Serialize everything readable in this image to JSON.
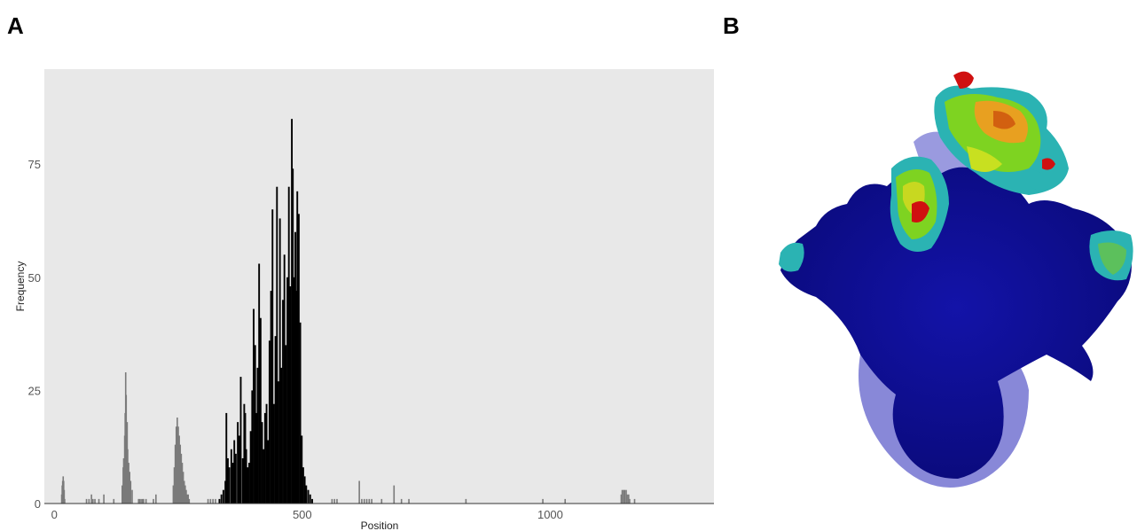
{
  "figure": {
    "panel_a_label": "A",
    "panel_b_label": "B"
  },
  "chart_data": {
    "type": "bar",
    "xlabel": "Position",
    "ylabel": "Frequency",
    "xlim": [
      -20,
      1330
    ],
    "ylim": [
      0,
      96
    ],
    "x_ticks": [
      0,
      500,
      1000
    ],
    "x_tick_labels": [
      "0",
      "500",
      "1000"
    ],
    "y_ticks": [
      0,
      25,
      50,
      75
    ],
    "y_tick_labels": [
      "0",
      "25",
      "50",
      "75"
    ],
    "grid": false,
    "panel_background": "#e8e8e8",
    "series": [
      {
        "color": "#7a7a7a",
        "x": [
          15,
          16,
          17,
          18,
          19,
          20,
          21,
          65,
          70,
          75,
          78,
          82,
          90,
          100,
          120,
          137,
          139,
          140,
          142,
          143,
          144,
          145,
          147,
          148,
          150,
          152,
          154,
          157,
          170,
          172,
          175,
          178,
          180,
          185,
          200,
          205,
          240,
          242,
          244,
          246,
          248,
          250,
          252,
          254,
          256,
          258,
          260,
          262,
          264,
          266,
          268,
          270,
          272,
          310,
          315,
          320,
          325,
          560,
          565,
          570,
          615,
          620,
          625,
          630,
          635,
          640,
          660,
          685,
          700,
          715,
          830,
          985,
          1030,
          1143,
          1145,
          1148,
          1150,
          1153,
          1155,
          1158,
          1160,
          1170
        ],
        "values": [
          2,
          4,
          5,
          6,
          5,
          3,
          1,
          1,
          1,
          2,
          1,
          1,
          1,
          2,
          1,
          4,
          8,
          10,
          15,
          20,
          29,
          24,
          18,
          12,
          9,
          7,
          5,
          3,
          1,
          1,
          1,
          1,
          1,
          1,
          1,
          2,
          4,
          8,
          13,
          17,
          19,
          17,
          15,
          13,
          11,
          9,
          7,
          5,
          4,
          3,
          2,
          2,
          1,
          1,
          1,
          1,
          1,
          1,
          1,
          1,
          5,
          1,
          1,
          1,
          1,
          1,
          1,
          4,
          1,
          1,
          1,
          1,
          1,
          2,
          3,
          3,
          3,
          3,
          2,
          2,
          1,
          1
        ]
      },
      {
        "color": "#000000",
        "x": [
          333,
          337,
          341,
          345,
          347,
          350,
          353,
          357,
          360,
          363,
          366,
          370,
          373,
          376,
          380,
          383,
          385,
          387,
          390,
          393,
          396,
          399,
          402,
          405,
          408,
          410,
          413,
          416,
          419,
          422,
          425,
          428,
          431,
          434,
          437,
          440,
          443,
          446,
          449,
          452,
          455,
          458,
          461,
          464,
          467,
          470,
          473,
          476,
          479,
          481,
          484,
          486,
          488,
          490,
          493,
          496,
          499,
          502,
          505,
          508,
          512,
          516,
          520
        ],
        "values": [
          1,
          2,
          3,
          5,
          20,
          10,
          8,
          12,
          9,
          14,
          11,
          18,
          15,
          28,
          10,
          22,
          20,
          12,
          8,
          9,
          16,
          25,
          43,
          35,
          20,
          30,
          53,
          41,
          18,
          12,
          20,
          22,
          14,
          36,
          47,
          65,
          22,
          37,
          70,
          27,
          63,
          30,
          45,
          55,
          35,
          50,
          70,
          48,
          85,
          74,
          50,
          60,
          47,
          69,
          64,
          40,
          15,
          8,
          6,
          4,
          3,
          2,
          1
        ]
      }
    ]
  }
}
